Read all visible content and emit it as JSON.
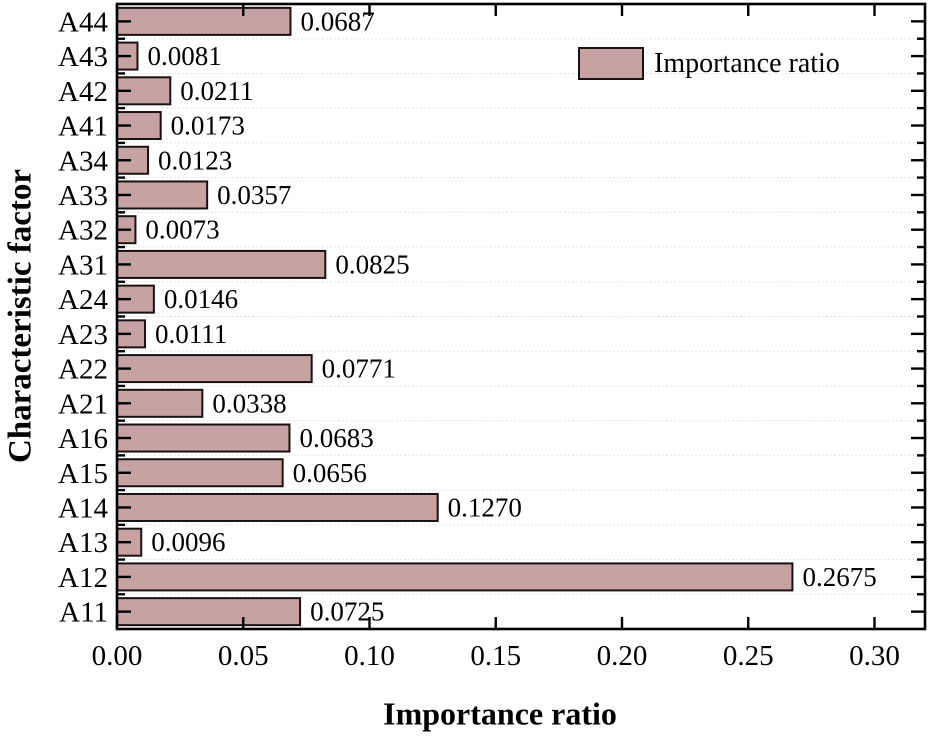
{
  "chart_data": {
    "type": "bar",
    "orientation": "horizontal",
    "title": "",
    "xlabel": "Importance ratio",
    "ylabel": "Characteristic factor",
    "categories_top_to_bottom": [
      "A44",
      "A43",
      "A42",
      "A41",
      "A34",
      "A33",
      "A32",
      "A31",
      "A24",
      "A23",
      "A22",
      "A21",
      "A16",
      "A15",
      "A14",
      "A13",
      "A12",
      "A11"
    ],
    "series": [
      {
        "name": "Importance ratio",
        "values": [
          0.0687,
          0.0081,
          0.0211,
          0.0173,
          0.0123,
          0.0357,
          0.0073,
          0.0825,
          0.0146,
          0.0111,
          0.0771,
          0.0338,
          0.0683,
          0.0656,
          0.127,
          0.0096,
          0.2675,
          0.0725
        ],
        "value_labels": [
          "0.0687",
          "0.0081",
          "0.0211",
          "0.0173",
          "0.0123",
          "0.0357",
          "0.0073",
          "0.0825",
          "0.0146",
          "0.0111",
          "0.0771",
          "0.0338",
          "0.0683",
          "0.0656",
          "0.1270",
          "0.0096",
          "0.2675",
          "0.0725"
        ]
      }
    ],
    "xlim": [
      0,
      0.32
    ],
    "xticks": {
      "values": [
        0,
        0.05,
        0.1,
        0.15,
        0.2,
        0.25,
        0.3
      ],
      "labels": [
        "0.00",
        "0.05",
        "0.10",
        "0.15",
        "0.20",
        "0.25",
        "0.30"
      ]
    },
    "grid": "horizontal dotted lines at category boundaries",
    "legend": {
      "label": "Importance ratio",
      "position": "top-right-inside"
    },
    "colors": {
      "bar_fill": "#C7A2A2",
      "bar_edge": "#1A1212",
      "axis": "#000000",
      "grid": "#DCDCDC",
      "text": "#000000",
      "background": "#FFFFFF"
    }
  }
}
